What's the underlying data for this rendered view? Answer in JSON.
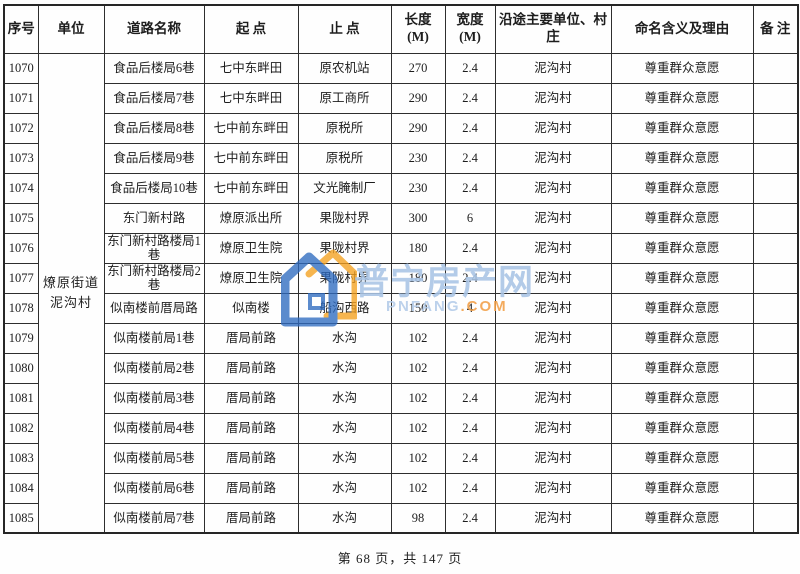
{
  "footer": {
    "page_indicator": "第 68 页，共 147 页"
  },
  "watermark": {
    "title": "普宁房产网",
    "domain_main": "PNFANG",
    "domain_suffix": ".COM",
    "colors": {
      "title_blue": "#a9c5e6",
      "logo_blue": "#2e6bc0",
      "logo_orange": "#f5a11f",
      "domain_blue": "#b5cdea",
      "domain_orange": "#f2a24c"
    }
  },
  "table": {
    "unit_merged": "燎原街道泥沟村",
    "columns": [
      {
        "key": "no",
        "label": "序号"
      },
      {
        "key": "unit",
        "label": "单位"
      },
      {
        "key": "road",
        "label": "道路名称"
      },
      {
        "key": "start",
        "label": "起 点"
      },
      {
        "key": "end",
        "label": "止 点"
      },
      {
        "key": "length",
        "label": "长度",
        "sublabel": "(M)"
      },
      {
        "key": "width",
        "label": "宽度",
        "sublabel": "(M)"
      },
      {
        "key": "along",
        "label": "沿途主要单位、村庄"
      },
      {
        "key": "reason",
        "label": "命名含义及理由"
      },
      {
        "key": "note",
        "label": "备 注"
      }
    ],
    "rows": [
      {
        "no": "1070",
        "road": "食品后楼局6巷",
        "start": "七中东畔田",
        "end": "原农机站",
        "length": "270",
        "width": "2.4",
        "along": "泥沟村",
        "reason": "尊重群众意愿",
        "note": ""
      },
      {
        "no": "1071",
        "road": "食品后楼局7巷",
        "start": "七中东畔田",
        "end": "原工商所",
        "length": "290",
        "width": "2.4",
        "along": "泥沟村",
        "reason": "尊重群众意愿",
        "note": ""
      },
      {
        "no": "1072",
        "road": "食品后楼局8巷",
        "start": "七中前东畔田",
        "end": "原税所",
        "length": "290",
        "width": "2.4",
        "along": "泥沟村",
        "reason": "尊重群众意愿",
        "note": ""
      },
      {
        "no": "1073",
        "road": "食品后楼局9巷",
        "start": "七中前东畔田",
        "end": "原税所",
        "length": "230",
        "width": "2.4",
        "along": "泥沟村",
        "reason": "尊重群众意愿",
        "note": ""
      },
      {
        "no": "1074",
        "road": "食品后楼局10巷",
        "start": "七中前东畔田",
        "end": "文光腌制厂",
        "length": "230",
        "width": "2.4",
        "along": "泥沟村",
        "reason": "尊重群众意愿",
        "note": ""
      },
      {
        "no": "1075",
        "road": "东门新村路",
        "start": "燎原派出所",
        "end": "果陇村界",
        "length": "300",
        "width": "6",
        "along": "泥沟村",
        "reason": "尊重群众意愿",
        "note": ""
      },
      {
        "no": "1076",
        "road": "东门新村路楼局1巷",
        "start": "燎原卫生院",
        "end": "果陇村界",
        "length": "180",
        "width": "2.4",
        "along": "泥沟村",
        "reason": "尊重群众意愿",
        "note": ""
      },
      {
        "no": "1077",
        "road": "东门新村路楼局2巷",
        "start": "燎原卫生院",
        "end": "果陇村界",
        "length": "180",
        "width": "2.4",
        "along": "泥沟村",
        "reason": "尊重群众意愿",
        "note": ""
      },
      {
        "no": "1078",
        "road": "似南楼前厝局路",
        "start": "似南楼",
        "end": "船沟西路",
        "length": "150",
        "width": "4",
        "along": "泥沟村",
        "reason": "尊重群众意愿",
        "note": ""
      },
      {
        "no": "1079",
        "road": "似南楼前局1巷",
        "start": "厝局前路",
        "end": "水沟",
        "length": "102",
        "width": "2.4",
        "along": "泥沟村",
        "reason": "尊重群众意愿",
        "note": ""
      },
      {
        "no": "1080",
        "road": "似南楼前局2巷",
        "start": "厝局前路",
        "end": "水沟",
        "length": "102",
        "width": "2.4",
        "along": "泥沟村",
        "reason": "尊重群众意愿",
        "note": ""
      },
      {
        "no": "1081",
        "road": "似南楼前局3巷",
        "start": "厝局前路",
        "end": "水沟",
        "length": "102",
        "width": "2.4",
        "along": "泥沟村",
        "reason": "尊重群众意愿",
        "note": ""
      },
      {
        "no": "1082",
        "road": "似南楼前局4巷",
        "start": "厝局前路",
        "end": "水沟",
        "length": "102",
        "width": "2.4",
        "along": "泥沟村",
        "reason": "尊重群众意愿",
        "note": ""
      },
      {
        "no": "1083",
        "road": "似南楼前局5巷",
        "start": "厝局前路",
        "end": "水沟",
        "length": "102",
        "width": "2.4",
        "along": "泥沟村",
        "reason": "尊重群众意愿",
        "note": ""
      },
      {
        "no": "1084",
        "road": "似南楼前局6巷",
        "start": "厝局前路",
        "end": "水沟",
        "length": "102",
        "width": "2.4",
        "along": "泥沟村",
        "reason": "尊重群众意愿",
        "note": ""
      },
      {
        "no": "1085",
        "road": "似南楼前局7巷",
        "start": "厝局前路",
        "end": "水沟",
        "length": "98",
        "width": "2.4",
        "along": "泥沟村",
        "reason": "尊重群众意愿",
        "note": ""
      }
    ]
  }
}
